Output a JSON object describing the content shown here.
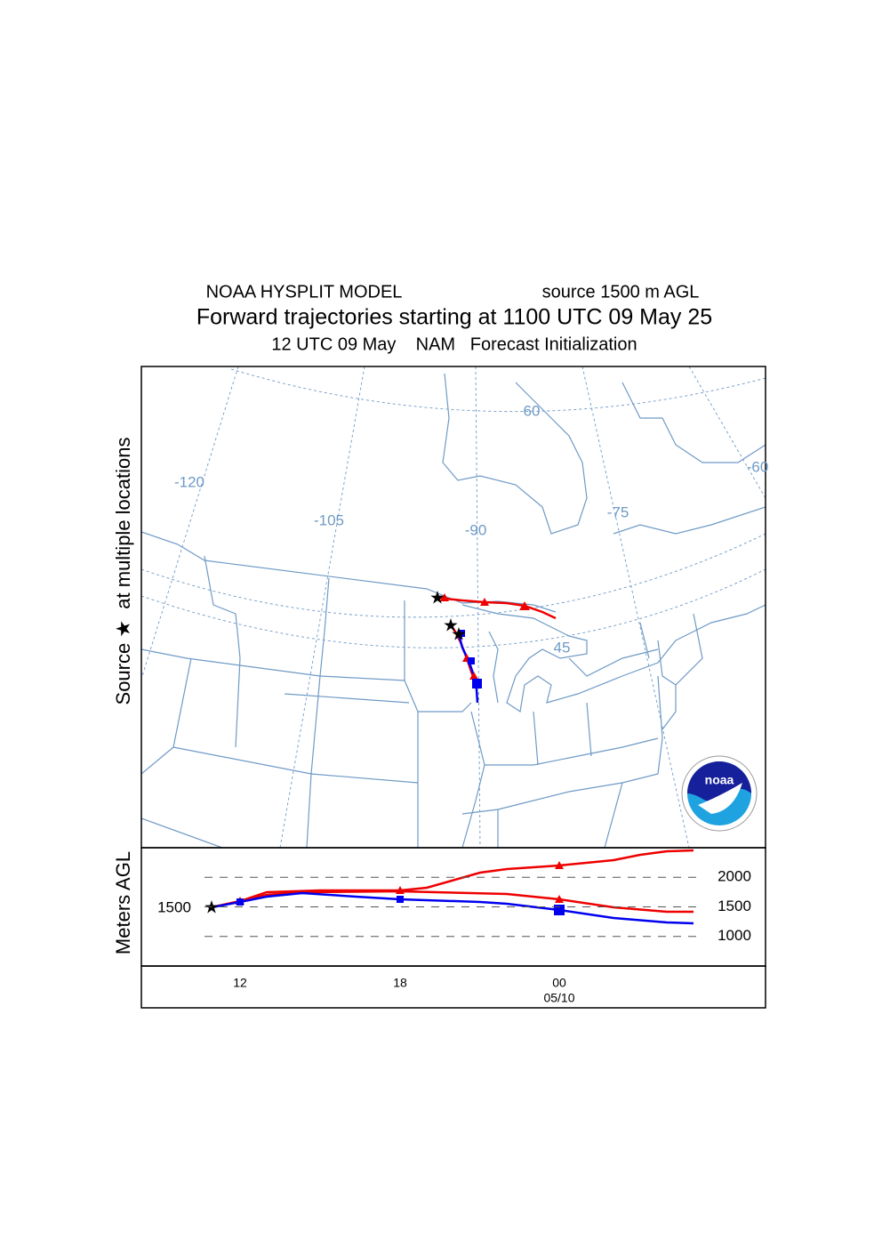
{
  "header": {
    "model": "NOAA HYSPLIT MODEL",
    "source": "source 1500 m AGL",
    "title": "Forward trajectories starting at 1100 UTC 09 May 25",
    "subtitle": "12 UTC 09 May    NAM   Forecast Initialization"
  },
  "map": {
    "side_label": "Source ★  at multiple locations",
    "grid_labels": [
      "60",
      "-120",
      "-105",
      "-90",
      "-75",
      "-60",
      "45"
    ]
  },
  "height_panel": {
    "axis_label": "Meters AGL",
    "ylim": [
      500,
      2500
    ],
    "yticks": [
      1000,
      1500,
      2000
    ],
    "start_label": "1500",
    "time_labels": [
      "12",
      "18",
      "00"
    ],
    "date_label": "05/10"
  },
  "logo": {
    "text": "noaa"
  }
}
